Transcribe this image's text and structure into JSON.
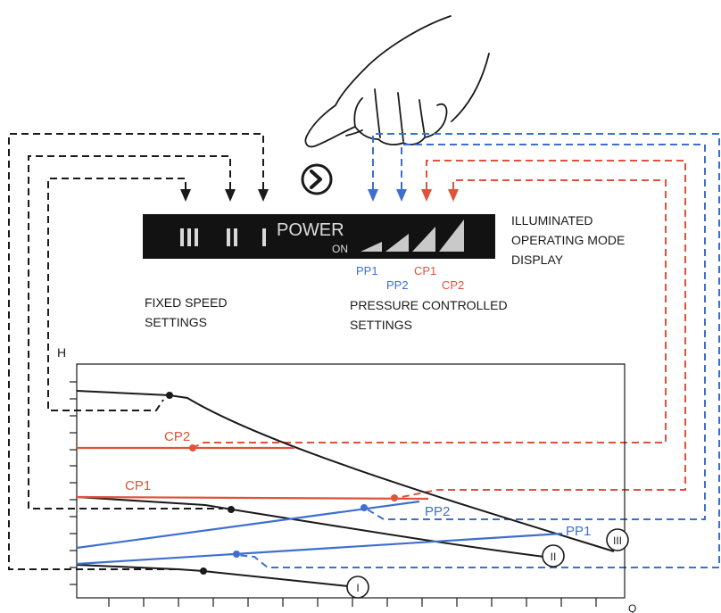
{
  "panel": {
    "power_label": "POWER",
    "on_label": "ON",
    "speed_marks": [
      "III",
      "II",
      "I"
    ]
  },
  "labels": {
    "display": [
      "ILLUMINATED",
      "OPERATING MODE",
      "DISPLAY"
    ],
    "fixed": [
      "FIXED SPEED",
      "SETTINGS"
    ],
    "pressure": [
      "PRESSURE CONTROLLED",
      "SETTINGS"
    ],
    "pp1": "PP1",
    "pp2": "PP2",
    "cp1": "CP1",
    "cp2": "CP2"
  },
  "graph": {
    "y_axis_label": "H",
    "x_axis_label": "Q",
    "curve_labels": {
      "cp2": "CP2",
      "cp1": "CP1",
      "pp2": "PP2",
      "pp1": "PP1",
      "speed3": "III",
      "speed2": "II",
      "speed1": "I"
    }
  },
  "colors": {
    "black": "#1a1a1a",
    "blue": "#3d6fd0",
    "red": "#e0523a",
    "panel": "#121212",
    "bars": "#c9c9c9"
  },
  "icons": {
    "hand": "pointing-hand-icon",
    "button": "mode-button-chevron-icon"
  }
}
